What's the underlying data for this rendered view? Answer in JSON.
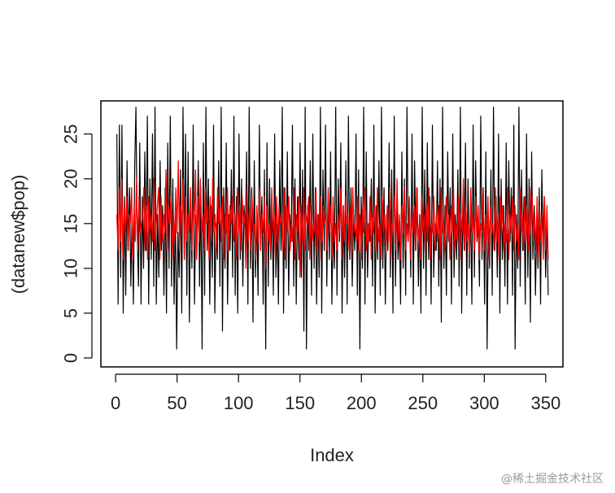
{
  "chart_data": {
    "type": "line",
    "title": "",
    "xlabel": "Index",
    "ylabel": "(datanew$pop)",
    "xlim": [
      0,
      352
    ],
    "ylim": [
      0,
      28
    ],
    "x_ticks": [
      0,
      50,
      100,
      150,
      200,
      250,
      300,
      350
    ],
    "y_ticks": [
      0,
      5,
      10,
      15,
      20,
      25
    ],
    "grid": false,
    "legend": "none",
    "n_points": 352,
    "series": [
      {
        "color": "#000000",
        "y_summary": {
          "min": 1,
          "max": 28,
          "typical_low": 6,
          "typical_high": 26
        },
        "values_sample": [
          25,
          6,
          26,
          9,
          26,
          5,
          18,
          7,
          22,
          12,
          19,
          8,
          16,
          6,
          21,
          28,
          14,
          8,
          24,
          6,
          18,
          10,
          23,
          12,
          27,
          6,
          20,
          11,
          25,
          8,
          28,
          6,
          16,
          9,
          22,
          12,
          17,
          7,
          19,
          5,
          24,
          10,
          27,
          8,
          20,
          6,
          17,
          1,
          14,
          9,
          21,
          5,
          28,
          11,
          25,
          7,
          23,
          4,
          18,
          10,
          26,
          6,
          16,
          13,
          22,
          8,
          19,
          1,
          24,
          7,
          28,
          12,
          20,
          6,
          17,
          9,
          26,
          5,
          15,
          11,
          22,
          8,
          28,
          3,
          19,
          10,
          24,
          6,
          16,
          12,
          21,
          9,
          27,
          7,
          18,
          5,
          25,
          11,
          20,
          8,
          17,
          13,
          23,
          6,
          28,
          10,
          19,
          4,
          22,
          9,
          16,
          7,
          26,
          12,
          18,
          6,
          21,
          1,
          24,
          8,
          20,
          11,
          17,
          7,
          25,
          9,
          15,
          6,
          22,
          12,
          28,
          5,
          19,
          10,
          23,
          7,
          16,
          13,
          26,
          8,
          20,
          6,
          18,
          11,
          24,
          9,
          21,
          3,
          28,
          1,
          17,
          12,
          22,
          7,
          25,
          10,
          19,
          6,
          16,
          9,
          28,
          5,
          21,
          12,
          26,
          8,
          18,
          11,
          23,
          6,
          15,
          10,
          28,
          7,
          20,
          13,
          24,
          5,
          17,
          9,
          22,
          6,
          27,
          11,
          19,
          8,
          16,
          12,
          25,
          7,
          21,
          1,
          18,
          10,
          28,
          6,
          23,
          9,
          15,
          13,
          20,
          8,
          26,
          5,
          17,
          11,
          22,
          7,
          28,
          10,
          19,
          6,
          16,
          12,
          24,
          9,
          21,
          5,
          27,
          8,
          18,
          11,
          15,
          6,
          23,
          10,
          20,
          7,
          28,
          13,
          17,
          9,
          25,
          6,
          22,
          12,
          19,
          8,
          16,
          5,
          28,
          10,
          21,
          7,
          24,
          11,
          18,
          6,
          26,
          9,
          15,
          12,
          22,
          8,
          20,
          4,
          28,
          10,
          17,
          7,
          23,
          13,
          19,
          6,
          25,
          9,
          16,
          11,
          21,
          8,
          28,
          5,
          18,
          12,
          24,
          7,
          20,
          10,
          17,
          6,
          26,
          9,
          22,
          13,
          15,
          8,
          27,
          11,
          19,
          6,
          23,
          1,
          16,
          10,
          21,
          7,
          28,
          12,
          18,
          9,
          25,
          5,
          20,
          11,
          17,
          8,
          24,
          6,
          22,
          13,
          19,
          7,
          26,
          1,
          16,
          10,
          28,
          8,
          21,
          12,
          18,
          6,
          25,
          9,
          20,
          4,
          23,
          11,
          17,
          7,
          15,
          10,
          19,
          6,
          21,
          13,
          18,
          9,
          16,
          7
        ]
      },
      {
        "color": "#ff0000",
        "y_summary": {
          "min": 9,
          "max": 22,
          "typical_low": 11,
          "typical_high": 19
        },
        "values_sample": [
          16,
          12,
          19,
          13,
          20,
          11,
          17,
          14,
          18,
          12,
          16,
          15,
          19,
          11,
          17,
          13,
          20,
          12,
          18,
          14,
          15,
          16,
          19,
          12,
          17,
          11,
          18,
          14,
          16,
          13,
          20,
          12,
          15,
          17,
          19,
          11,
          18,
          13,
          16,
          14,
          21,
          12,
          17,
          15,
          18,
          11,
          16,
          13,
          19,
          14,
          22,
          12,
          17,
          15,
          20,
          11,
          18,
          13,
          16,
          14,
          19,
          12,
          17,
          15,
          21,
          11,
          18,
          13,
          20,
          14,
          16,
          12,
          19,
          15,
          17,
          11,
          18,
          13,
          20,
          14,
          16,
          12,
          19,
          15,
          17,
          13,
          18,
          11,
          16,
          14,
          19,
          12,
          17,
          15,
          18,
          13,
          16,
          11,
          19,
          14,
          17,
          12,
          18,
          15,
          16,
          10,
          19,
          13,
          17,
          12,
          18,
          14,
          15,
          11,
          17,
          13,
          19,
          12,
          16,
          14,
          18,
          10,
          17,
          13,
          15,
          12,
          19,
          14,
          16,
          11,
          18,
          13,
          17,
          15,
          16,
          12,
          19,
          11,
          17,
          14,
          18,
          12,
          15,
          13,
          19,
          11,
          16,
          14,
          18,
          9,
          17,
          13,
          19,
          12,
          16,
          15,
          18,
          11,
          17,
          13,
          15,
          14,
          19,
          12,
          16,
          11,
          18,
          13,
          17,
          15,
          16,
          12,
          19,
          14,
          17,
          11,
          18,
          13,
          15,
          12,
          16,
          14,
          19,
          11,
          17,
          13,
          18,
          15,
          16,
          12,
          17,
          11,
          19,
          14,
          15,
          13,
          18,
          12,
          16,
          11,
          17,
          14,
          19,
          12,
          15,
          13,
          18,
          11,
          16,
          14,
          17,
          12,
          19,
          13,
          15,
          11,
          18,
          14,
          16,
          12,
          17,
          13,
          19,
          11,
          15,
          14,
          18,
          12,
          20,
          13,
          16,
          11,
          17,
          14,
          19,
          12,
          15,
          13,
          18,
          11,
          16,
          14,
          17,
          12,
          19,
          13,
          15,
          11,
          18,
          14,
          16,
          12,
          17,
          13,
          19,
          11,
          15,
          14,
          18,
          12,
          16,
          13,
          17,
          11,
          19,
          14,
          15,
          12,
          18,
          13,
          16,
          11,
          17,
          14,
          19,
          12,
          15,
          13,
          18,
          11,
          16,
          14,
          20,
          12,
          17,
          13,
          15,
          11,
          19,
          14,
          16,
          12,
          18,
          13,
          17,
          11,
          15,
          14,
          19,
          12,
          16,
          13,
          18,
          11,
          17,
          14,
          15,
          12,
          19,
          13,
          16,
          11,
          18,
          14,
          17,
          12,
          15,
          13,
          19,
          11,
          16,
          14,
          18,
          12,
          17,
          13,
          15,
          11,
          19,
          14,
          16,
          12,
          18,
          13,
          17,
          12,
          19,
          14,
          18,
          13,
          16,
          12,
          18,
          11,
          17,
          13,
          16,
          11,
          18,
          12,
          17,
          11
        ]
      }
    ]
  },
  "watermark": "@稀土掘金技术社区"
}
